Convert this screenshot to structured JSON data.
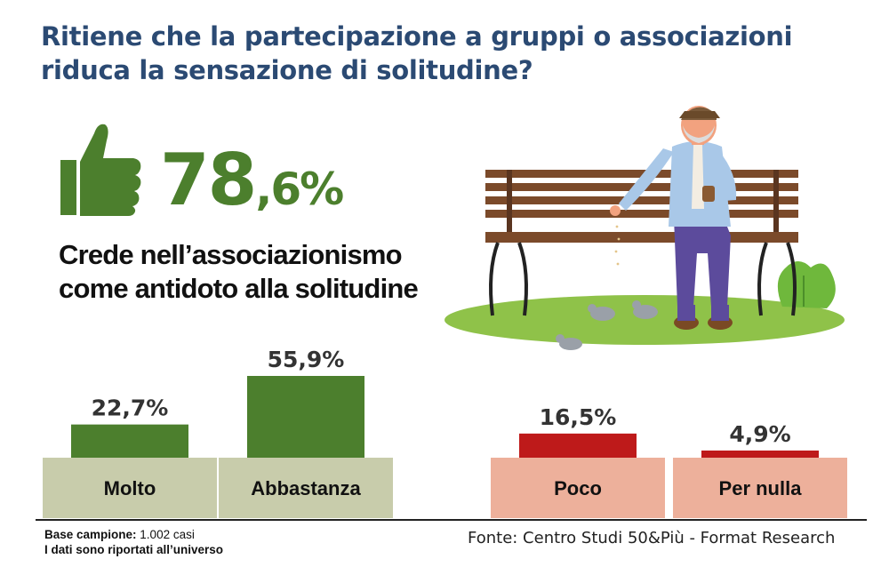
{
  "title": {
    "line1": "Ritiene che la partecipazione a gruppi o associazioni",
    "line2": "riduca la sensazione di solitudine?"
  },
  "highlight": {
    "value_int": "78",
    "value_dec": ",6%",
    "caption_line1": "Crede nell’associazionismo",
    "caption_line2": "come antidoto alla solitudine"
  },
  "chart_data": {
    "type": "bar",
    "categories": [
      "Molto",
      "Abbastanza",
      "Poco",
      "Per nulla"
    ],
    "values": [
      22.7,
      55.9,
      16.5,
      4.9
    ],
    "value_labels": [
      "22,7%",
      "55,9%",
      "16,5%",
      "4,9%"
    ],
    "unit": "%",
    "bar_colors": [
      "#4c7f2d",
      "#4c7f2d",
      "#be1a1a",
      "#be1a1a"
    ],
    "label_box_colors": [
      "#c8ccab",
      "#c8ccab",
      "#edb09b",
      "#edb09b"
    ]
  },
  "footer": {
    "base_label": "Base campione:",
    "base_value": " 1.002 casi",
    "note": "I dati sono riportati all’universo",
    "source": "Fonte: Centro Studi 50&Più - Format Research"
  },
  "colors": {
    "title": "#2b4a73",
    "accent_green": "#4c7f2d",
    "accent_red": "#be1a1a"
  },
  "icons": [
    "thumbs-up-icon",
    "bench-illustration"
  ]
}
